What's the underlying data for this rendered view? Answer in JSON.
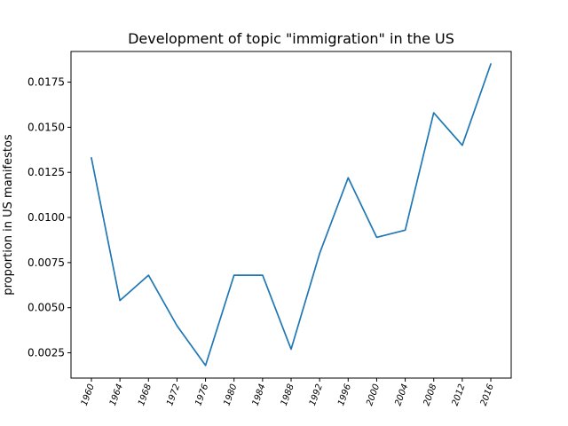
{
  "chart_data": {
    "type": "line",
    "title": "Development of topic \"immigration\" in the US",
    "xlabel": "",
    "ylabel": "proportion in US manifestos",
    "categories": [
      "1960",
      "1964",
      "1968",
      "1972",
      "1976",
      "1980",
      "1984",
      "1988",
      "1992",
      "1996",
      "2000",
      "2004",
      "2008",
      "2012",
      "2016"
    ],
    "series": [
      {
        "values": [
          0.0133,
          0.0054,
          0.0068,
          0.004,
          0.0018,
          0.0068,
          0.0068,
          0.0027,
          0.008,
          0.0122,
          0.0089,
          0.0093,
          0.0158,
          0.014,
          0.0185
        ]
      }
    ],
    "yticks": [
      "0.0025",
      "0.0050",
      "0.0075",
      "0.0100",
      "0.0125",
      "0.0150",
      "0.0175"
    ],
    "ylim": [
      0.0011,
      0.0192
    ],
    "line_color": "#1f77b4",
    "grid": false,
    "legend": "none"
  }
}
